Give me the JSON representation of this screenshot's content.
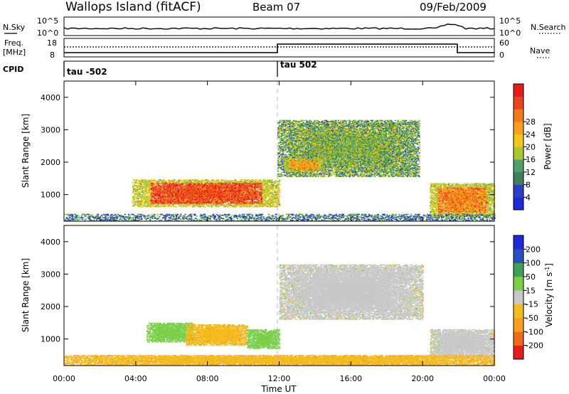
{
  "header": {
    "station": "Wallops Island (fitACF)",
    "beam": "Beam 07",
    "date": "09/Feb/2009"
  },
  "strips": {
    "nsky_label": "N.Sky",
    "nsearch_label": "N.Search",
    "noise_ticks": [
      "10^5",
      "10^0"
    ],
    "freq_label_1": "Freq.",
    "freq_label_2": "[MHz]",
    "freq_ticks": [
      "18",
      "8"
    ],
    "nave_label": "Nave",
    "nave_ticks": [
      "60",
      "0"
    ],
    "cpid_label": "CPID",
    "cpid_segments": [
      {
        "label": "tau -502",
        "start_hour": 0,
        "end_hour": 12
      },
      {
        "label": "tau 502",
        "start_hour": 12,
        "end_hour": 24
      }
    ]
  },
  "power_colorbar": {
    "label": "Power [dB]",
    "ticks": [
      "4",
      "8",
      "12",
      "16",
      "20",
      "24",
      "28"
    ],
    "colors": [
      "#1f2ad6",
      "#2a3fc2",
      "#3f7f5a",
      "#4ea06a",
      "#a8c832",
      "#f3c61a",
      "#f5a020",
      "#f37a1a",
      "#e8451c",
      "#e81c1c"
    ]
  },
  "velocity_colorbar": {
    "label": "Velocity [m s",
    "label_sup": "-1",
    "label_end": "]",
    "ticks": [
      "-200",
      "-100",
      "-50",
      "-15",
      "15",
      "50",
      "100",
      "200"
    ],
    "colors": [
      "#e81c1c",
      "#f06a1a",
      "#f5a020",
      "#f4bd1e",
      "#c8c8c8",
      "#7ad049",
      "#3fa05a",
      "#2a50c0",
      "#1f2ad6"
    ]
  },
  "axes": {
    "ylabel": "Slant Range [km]",
    "xlabel": "Time UT",
    "yticks": [
      "1000",
      "2000",
      "3000",
      "4000"
    ],
    "xticks": [
      "00:00",
      "04:00",
      "08:00",
      "12:00",
      "16:00",
      "20:00",
      "00:00"
    ]
  },
  "chart_data": [
    {
      "type": "heatmap",
      "name": "power",
      "xlabel": "Time UT",
      "ylabel": "Slant Range [km]",
      "xlim": [
        0,
        24
      ],
      "ylim": [
        180,
        4500
      ],
      "units": "dB",
      "regions": [
        {
          "t0": 3.8,
          "t1": 12.0,
          "r0": 620,
          "r1": 1450,
          "value": 24
        },
        {
          "t0": 11.9,
          "t1": 19.8,
          "r0": 1550,
          "r1": 3300,
          "value": 10
        },
        {
          "t0": 12.3,
          "t1": 14.4,
          "r0": 1700,
          "r1": 2100,
          "value": 18
        },
        {
          "t0": 20.4,
          "t1": 24.0,
          "r0": 300,
          "r1": 1350,
          "value": 20
        },
        {
          "t0": 0.0,
          "t1": 24.0,
          "r0": 180,
          "r1": 400,
          "value": 6
        }
      ]
    },
    {
      "type": "heatmap",
      "name": "velocity",
      "xlabel": "Time UT",
      "ylabel": "Slant Range [km]",
      "xlim": [
        0,
        24
      ],
      "ylim": [
        180,
        4500
      ],
      "units": "m/s",
      "regions": [
        {
          "t0": 4.6,
          "t1": 7.2,
          "r0": 900,
          "r1": 1500,
          "value": 30
        },
        {
          "t0": 6.8,
          "t1": 10.2,
          "r0": 800,
          "r1": 1450,
          "value": -40
        },
        {
          "t0": 10.2,
          "t1": 12.0,
          "r0": 700,
          "r1": 1300,
          "value": 30
        },
        {
          "t0": 12.0,
          "t1": 20.0,
          "r0": 1600,
          "r1": 3300,
          "value": 0
        },
        {
          "t0": 20.4,
          "t1": 24.0,
          "r0": 400,
          "r1": 1300,
          "value": 0
        },
        {
          "t0": 0.0,
          "t1": 24.0,
          "r0": 180,
          "r1": 500,
          "value": -40
        }
      ]
    }
  ]
}
